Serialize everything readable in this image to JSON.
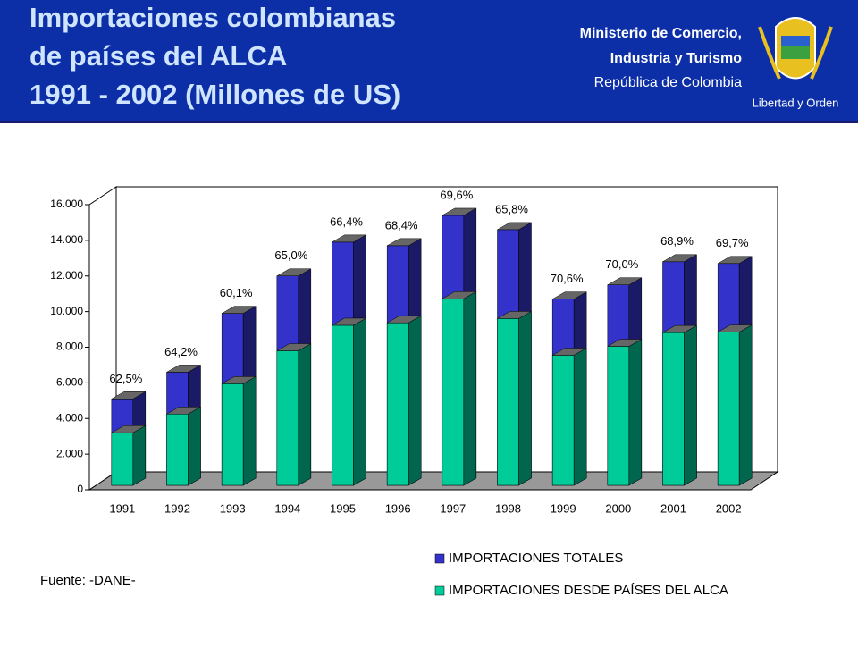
{
  "header": {
    "title": [
      "Importaciones colombianas",
      "de países del ALCA",
      "1991 - 2002 (Millones de US)"
    ],
    "organization": [
      "Ministerio de Comercio,",
      "Industria y Turismo",
      "República de Colombia"
    ],
    "emblem_motto": "Libertad y Orden"
  },
  "chart_data": {
    "type": "bar3d",
    "categories": [
      "1991",
      "1992",
      "1993",
      "1994",
      "1995",
      "1996",
      "1997",
      "1998",
      "1999",
      "2000",
      "2001",
      "2002"
    ],
    "series": [
      {
        "name": "IMPORTACIONES TOTALES",
        "color": "#3333cc",
        "values": [
          5100,
          6600,
          9900,
          12000,
          13900,
          13700,
          15400,
          14600,
          10700,
          11500,
          12800,
          12700
        ]
      },
      {
        "name": "IMPORTACIONES DESDE PAÍSES DEL ALCA",
        "color": "#00cc99",
        "values": [
          3200,
          4250,
          5950,
          7800,
          9230,
          9370,
          10720,
          9610,
          7550,
          8050,
          8820,
          8850
        ]
      }
    ],
    "annotations": [
      "62,5%",
      "64,2%",
      "60,1%",
      "65,0%",
      "66,4%",
      "68,4%",
      "69,6%",
      "65,8%",
      "70,6%",
      "70,0%",
      "68,9%",
      "69,7%"
    ],
    "ylim": [
      0,
      16000
    ],
    "yticks": [
      0,
      {
        "value": 2000,
        "label": "2.000"
      },
      {
        "value": 4000,
        "label": "4.000"
      },
      {
        "value": 6000,
        "label": "6.000"
      },
      {
        "value": 8000,
        "label": "8.000"
      },
      {
        "value": 10000,
        "label": "10.000"
      },
      {
        "value": 12000,
        "label": "12.000"
      },
      {
        "value": 14000,
        "label": "14.000"
      },
      {
        "value": 16000,
        "label": "16.000"
      }
    ],
    "source": "Fuente: -DANE-"
  }
}
